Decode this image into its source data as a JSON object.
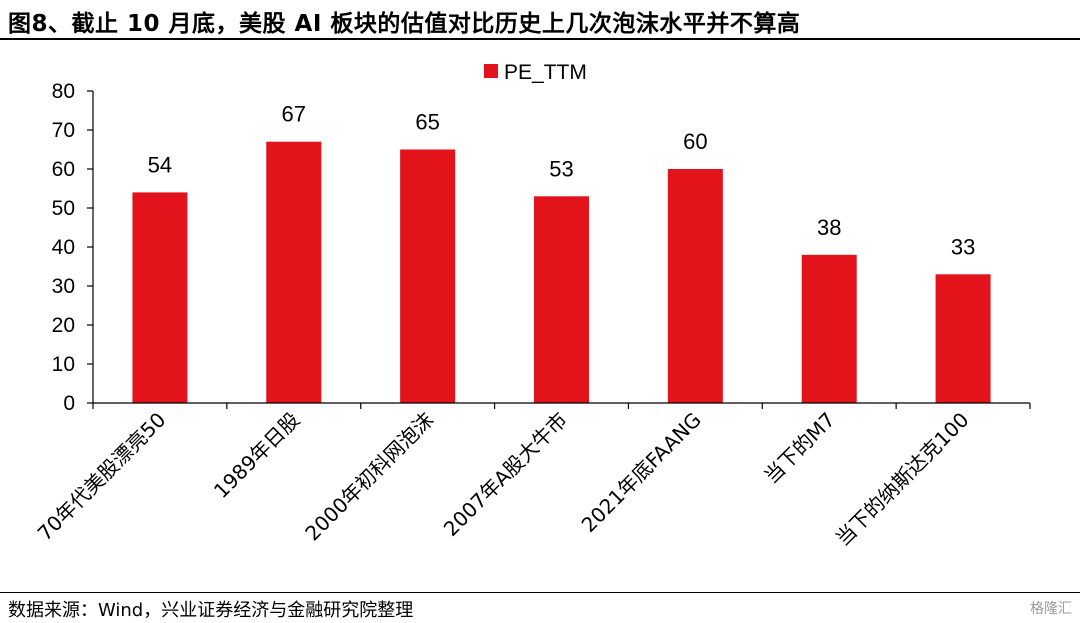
{
  "header": {
    "title": "图8、截止 10 月底，美股 AI 板块的估值对比历史上几次泡沫水平并不算高"
  },
  "footer": {
    "source": "数据来源：Wind，兴业证券经济与金融研究院整理",
    "watermark": "格隆汇"
  },
  "colors": {
    "bar": "#e3131b",
    "axis": "#000000"
  },
  "chart_data": {
    "type": "bar",
    "title": "",
    "xlabel": "",
    "ylabel": "",
    "categories": [
      "70年代美股漂亮50",
      "1989年日股",
      "2000年初科网泡沫",
      "2007年A股大牛市",
      "2021年底FAANG",
      "当下的M7",
      "当下的纳斯达克100"
    ],
    "series": [
      {
        "name": "PE_TTM",
        "values": [
          54,
          67,
          65,
          53,
          60,
          38,
          33
        ]
      }
    ],
    "ylim": [
      0,
      80
    ],
    "yticks": [
      0,
      10,
      20,
      30,
      40,
      50,
      60,
      70,
      80
    ],
    "legend": "top-center",
    "grid": false,
    "data_labels": true
  }
}
